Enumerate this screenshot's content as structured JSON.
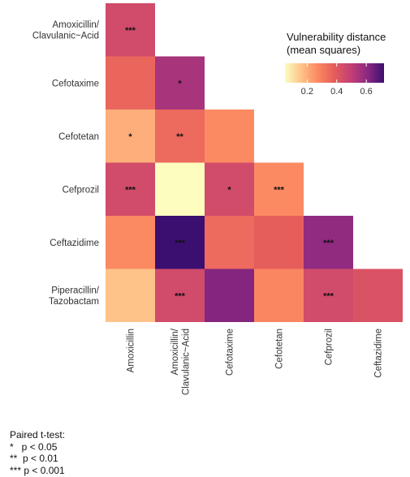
{
  "chart_data": {
    "type": "heatmap",
    "rows": [
      "Amoxicillin/\nClavulanic~Acid",
      "Cefotaxime",
      "Cefotetan",
      "Cefprozil",
      "Ceftazidime",
      "Piperacillin/\nTazobactam"
    ],
    "columns": [
      "Amoxicillin",
      "Amoxicillin/\nClavulanic~Acid",
      "Cefotaxime",
      "Cefotetan",
      "Cefprozil",
      "Ceftazidime"
    ],
    "values": [
      [
        0.45,
        null,
        null,
        null,
        null,
        null
      ],
      [
        0.36,
        0.55,
        null,
        null,
        null,
        null
      ],
      [
        0.2,
        0.35,
        0.27,
        null,
        null,
        null
      ],
      [
        0.45,
        0.05,
        0.45,
        0.27,
        null,
        null
      ],
      [
        0.27,
        0.72,
        0.35,
        0.38,
        0.6,
        null
      ],
      [
        0.16,
        0.45,
        0.62,
        0.28,
        0.45,
        0.42
      ]
    ],
    "significance": [
      [
        "***",
        null,
        null,
        null,
        null,
        null
      ],
      [
        "",
        "*",
        null,
        null,
        null,
        null
      ],
      [
        "*",
        "**",
        "",
        null,
        null,
        null
      ],
      [
        "***",
        "",
        "*",
        "***",
        null,
        null
      ],
      [
        "",
        "***",
        "",
        "",
        "***",
        null
      ],
      [
        "",
        "***",
        "",
        "",
        "***",
        ""
      ]
    ],
    "legend": {
      "title_line1": "Vulnerability distance",
      "title_line2": "(mean squares)",
      "range": [
        0.05,
        0.72
      ],
      "ticks": [
        0.2,
        0.4,
        0.6
      ],
      "tick_labels": [
        "0.2",
        "0.4",
        "0.6"
      ],
      "placement": "top-right",
      "colors": [
        "#fcfdbf",
        "#fec287",
        "#fb8861",
        "#e55c5c",
        "#c23f76",
        "#8c2981",
        "#3b0f70"
      ]
    }
  },
  "footnote": {
    "title": "Paired t-test:",
    "lines": [
      "*   p < 0.05",
      "**  p < 0.01",
      "*** p < 0.001"
    ]
  }
}
